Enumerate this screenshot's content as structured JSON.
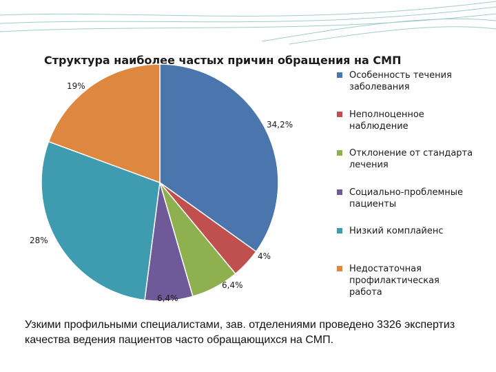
{
  "colors": {
    "slide_background": "#ffffff",
    "slide_accent_lines": "#2e8b8b"
  },
  "chart_data": {
    "type": "pie",
    "title": "Структура наиболее частых причин обращения на СМП",
    "legend_position": "right",
    "slices": [
      {
        "name": "Особенность течения заболевания",
        "value": 34.2,
        "label": "34,2%",
        "color": "#4a76ad"
      },
      {
        "name": "Неполноценное наблюдение",
        "value": 4,
        "label": "4%",
        "color": "#c0504d"
      },
      {
        "name": "Отклонение от стандарта лечения",
        "value": 6.4,
        "label": "6,4%",
        "color": "#8fb04f"
      },
      {
        "name": "Социально-проблемные пациенты",
        "value": 6.4,
        "label": "6,4%",
        "color": "#6e5a99"
      },
      {
        "name": "Низкий комплайенс",
        "value": 28,
        "label": "28%",
        "color": "#3f9bb0"
      },
      {
        "name": "Недостаточная профилактическая работа",
        "value": 19,
        "label": "19%",
        "color": "#dd8740"
      }
    ],
    "legend_labels": [
      "Особенность течения заболевания",
      "Неполноценное наблюдение",
      "Отклонение от стандарта лечения",
      "Социально-проблемные пациенты",
      "Низкий комплайенс",
      "Недостаточная профилактическая работа"
    ]
  },
  "footnote": "Узкими профильными специалистами, зав. отделениями проведено 3326 экспертиз качества ведения пациентов часто обращающихся на СМП."
}
